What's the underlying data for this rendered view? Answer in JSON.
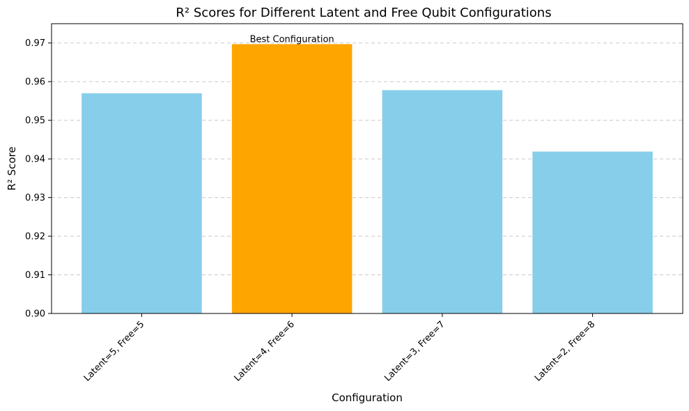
{
  "chart_data": {
    "type": "bar",
    "title": "R² Scores for Different Latent and Free Qubit Configurations",
    "xlabel": "Configuration",
    "ylabel": "R² Score",
    "categories": [
      "Latent=5, Free=5",
      "Latent=4, Free=6",
      "Latent=3, Free=7",
      "Latent=2, Free=8"
    ],
    "values": [
      0.957,
      0.9697,
      0.9578,
      0.9419
    ],
    "colors": [
      "#87ceeb",
      "#ffa500",
      "#87ceeb",
      "#87ceeb"
    ],
    "highlight_index": 1,
    "annotation": "Best Configuration",
    "ylim": [
      0.9,
      0.975
    ],
    "yticks": [
      "0.90",
      "0.91",
      "0.92",
      "0.93",
      "0.94",
      "0.95",
      "0.96",
      "0.97"
    ],
    "grid": "y-dashed",
    "x_tick_rotation": 45
  }
}
